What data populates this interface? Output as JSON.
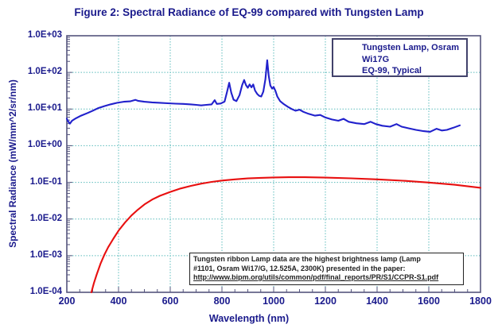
{
  "title": "Figure 2: Spectral Radiance of EQ-99 compared with Tungsten Lamp",
  "legend": {
    "entries": [
      {
        "label": "Tungsten Lamp, Osram Wi17G"
      },
      {
        "label": "EQ-99, Typical"
      }
    ]
  },
  "annotation": {
    "lines": [
      "Tungsten ribbon Lamp data are the highest brightness lamp (Lamp",
      "#1101, Osram Wi17/G, 12.525A, 2300K) presented in the paper:",
      "http://www.bipm.org/utils/common/pdf/final_reports/PR/S1/CCPR-S1.pdf"
    ]
  },
  "colors": {
    "title_text": "#1a1a8c",
    "axis_text": "#1a1a8c",
    "frame": "#55557d",
    "grid": "#5cbcbc",
    "tungsten_red": "#e81010",
    "eq99_blue": "#2121cc"
  },
  "chart_data": {
    "type": "line",
    "title": "Figure 2: Spectral Radiance of EQ-99 compared with Tungsten Lamp",
    "xlabel": "Wavelength (nm)",
    "ylabel": "Spectral Radiance (mW/mm^2/sr/nm)",
    "grid": true,
    "legend_position": "top-right",
    "x_axis": {
      "min": 200,
      "max": 1800,
      "major_tick": 200,
      "minor_tick": 50
    },
    "y_axis": {
      "scale": "log",
      "min": 0.0001,
      "max": 1000
    },
    "x_ticks": [
      200,
      400,
      600,
      800,
      1000,
      1200,
      1400,
      1600,
      1800
    ],
    "y_ticks": [
      {
        "label": "1.0E+03",
        "value": 1000
      },
      {
        "label": "1.0E+02",
        "value": 100
      },
      {
        "label": "1.0E+01",
        "value": 10
      },
      {
        "label": "1.0E+00",
        "value": 1
      },
      {
        "label": "1.0E-01",
        "value": 0.1
      },
      {
        "label": "1.0E-02",
        "value": 0.01
      },
      {
        "label": "1.0E-03",
        "value": 0.001
      },
      {
        "label": "1.0E-04",
        "value": 0.0001
      }
    ],
    "series": [
      {
        "name": "Tungsten Lamp, Osram Wi17G",
        "color": "#e81010",
        "points": [
          [
            295,
            0.0001
          ],
          [
            305,
            0.00018
          ],
          [
            315,
            0.0003
          ],
          [
            330,
            0.0006
          ],
          [
            345,
            0.00105
          ],
          [
            360,
            0.0017
          ],
          [
            380,
            0.0029
          ],
          [
            400,
            0.0048
          ],
          [
            425,
            0.008
          ],
          [
            450,
            0.0125
          ],
          [
            475,
            0.018
          ],
          [
            500,
            0.025
          ],
          [
            530,
            0.034
          ],
          [
            560,
            0.043
          ],
          [
            600,
            0.055
          ],
          [
            640,
            0.068
          ],
          [
            680,
            0.08
          ],
          [
            720,
            0.092
          ],
          [
            760,
            0.103
          ],
          [
            800,
            0.112
          ],
          [
            850,
            0.121
          ],
          [
            900,
            0.128
          ],
          [
            950,
            0.133
          ],
          [
            1000,
            0.136
          ],
          [
            1060,
            0.138
          ],
          [
            1120,
            0.138
          ],
          [
            1200,
            0.135
          ],
          [
            1300,
            0.129
          ],
          [
            1400,
            0.121
          ],
          [
            1500,
            0.111
          ],
          [
            1600,
            0.099
          ],
          [
            1700,
            0.086
          ],
          [
            1800,
            0.071
          ]
        ]
      },
      {
        "name": "EQ-99, Typical",
        "color": "#2121cc",
        "points": [
          [
            200,
            5.5
          ],
          [
            205,
            4.6
          ],
          [
            212,
            4.0
          ],
          [
            220,
            4.8
          ],
          [
            235,
            5.6
          ],
          [
            255,
            6.6
          ],
          [
            280,
            7.8
          ],
          [
            300,
            9.0
          ],
          [
            320,
            10.5
          ],
          [
            345,
            12.0
          ],
          [
            370,
            13.5
          ],
          [
            395,
            14.8
          ],
          [
            420,
            15.8
          ],
          [
            445,
            16.2
          ],
          [
            465,
            17.8
          ],
          [
            475,
            16.8
          ],
          [
            500,
            15.8
          ],
          [
            530,
            15.2
          ],
          [
            560,
            14.8
          ],
          [
            590,
            14.4
          ],
          [
            620,
            14.0
          ],
          [
            650,
            13.8
          ],
          [
            680,
            13.4
          ],
          [
            700,
            13.0
          ],
          [
            720,
            12.6
          ],
          [
            740,
            13.0
          ],
          [
            760,
            13.4
          ],
          [
            772,
            17.5
          ],
          [
            780,
            13.8
          ],
          [
            795,
            14.2
          ],
          [
            810,
            16.0
          ],
          [
            820,
            30
          ],
          [
            828,
            52
          ],
          [
            836,
            28
          ],
          [
            845,
            18
          ],
          [
            856,
            16.5
          ],
          [
            868,
            24
          ],
          [
            878,
            45
          ],
          [
            886,
            62
          ],
          [
            893,
            45
          ],
          [
            900,
            38
          ],
          [
            907,
            47
          ],
          [
            914,
            39
          ],
          [
            921,
            47
          ],
          [
            928,
            32
          ],
          [
            936,
            26
          ],
          [
            944,
            23
          ],
          [
            952,
            22
          ],
          [
            960,
            30
          ],
          [
            968,
            65
          ],
          [
            975,
            215
          ],
          [
            981,
            80
          ],
          [
            987,
            44
          ],
          [
            994,
            36
          ],
          [
            1000,
            40
          ],
          [
            1007,
            31
          ],
          [
            1014,
            22
          ],
          [
            1025,
            16.5
          ],
          [
            1040,
            13.5
          ],
          [
            1055,
            11.5
          ],
          [
            1070,
            10.0
          ],
          [
            1085,
            9.0
          ],
          [
            1100,
            9.6
          ],
          [
            1115,
            8.4
          ],
          [
            1135,
            7.4
          ],
          [
            1160,
            6.6
          ],
          [
            1180,
            6.9
          ],
          [
            1200,
            5.9
          ],
          [
            1225,
            5.2
          ],
          [
            1250,
            4.8
          ],
          [
            1270,
            5.4
          ],
          [
            1290,
            4.5
          ],
          [
            1320,
            4.1
          ],
          [
            1350,
            3.9
          ],
          [
            1375,
            4.5
          ],
          [
            1395,
            3.9
          ],
          [
            1420,
            3.5
          ],
          [
            1450,
            3.3
          ],
          [
            1475,
            3.9
          ],
          [
            1495,
            3.3
          ],
          [
            1520,
            3.0
          ],
          [
            1550,
            2.7
          ],
          [
            1580,
            2.5
          ],
          [
            1605,
            2.4
          ],
          [
            1630,
            2.9
          ],
          [
            1650,
            2.6
          ],
          [
            1670,
            2.7
          ],
          [
            1695,
            3.1
          ],
          [
            1720,
            3.6
          ]
        ]
      }
    ]
  }
}
